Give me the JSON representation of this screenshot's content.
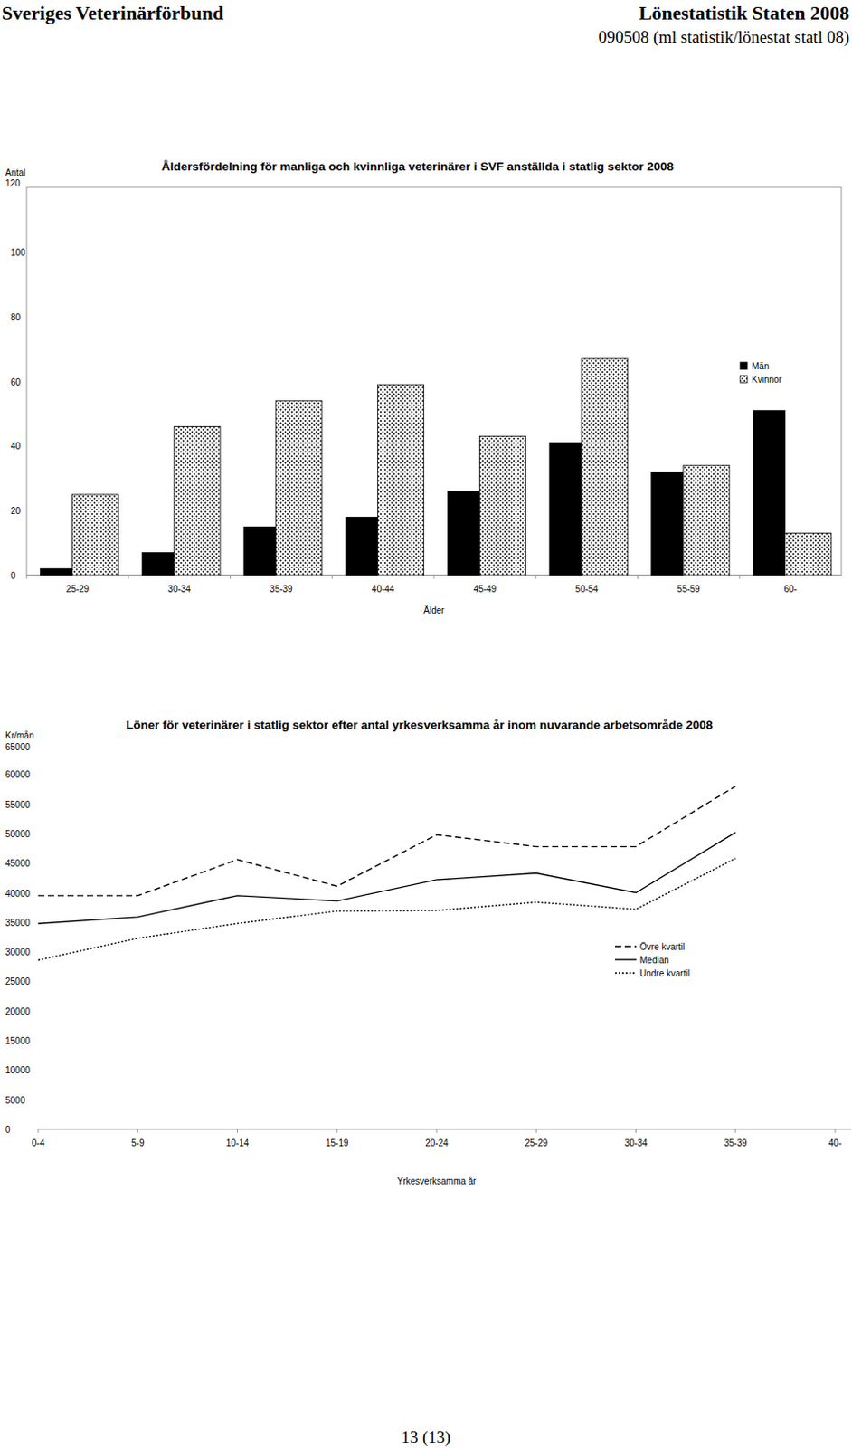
{
  "header": {
    "organization": "Sveriges Veterinärförbund",
    "title": "Lönestatistik Staten 2008",
    "reference": "090508 (ml statistik/lönestat statl 08)"
  },
  "footer": {
    "page": "13 (13)"
  },
  "chart_data": [
    {
      "type": "bar",
      "title": "Åldersfördelning för manliga och kvinnliga veterinärer i SVF anställda i statlig sektor 2008",
      "x_label": "Ålder",
      "y_label": "Antal",
      "categories": [
        "25-29",
        "30-34",
        "35-39",
        "40-44",
        "45-49",
        "50-54",
        "55-59",
        "60-"
      ],
      "series": [
        {
          "name": "Män",
          "color": "#000000",
          "values": [
            2,
            7,
            15,
            18,
            26,
            41,
            32,
            51
          ]
        },
        {
          "name": "Kvinnor",
          "color": "#ffffff",
          "values": [
            25,
            46,
            54,
            59,
            43,
            67,
            34,
            13
          ]
        }
      ],
      "ylim": [
        0,
        120
      ],
      "yticks": [
        0,
        20,
        40,
        60,
        80,
        100,
        120
      ],
      "legend": "right",
      "grid": false
    },
    {
      "type": "line",
      "title": "Löner för veterinärer i statlig sektor efter antal yrkesverksamma år inom  nuvarande arbetsområde 2008",
      "x_label": "Yrkesverksamma år",
      "y_label": "Kr/mån",
      "categories": [
        "0-4",
        "5-9",
        "10-14",
        "15-19",
        "20-24",
        "25-29",
        "30-34",
        "35-39",
        "40-"
      ],
      "series": [
        {
          "name": "Övre kvartil",
          "color": "#000000",
          "line_style": "dashed",
          "values": [
            39500,
            39500,
            45600,
            41100,
            49800,
            47800,
            47800,
            58000,
            null
          ]
        },
        {
          "name": "Median",
          "color": "#000000",
          "line_style": "solid",
          "values": [
            34800,
            35900,
            39500,
            38600,
            42200,
            43300,
            40000,
            50200,
            null
          ]
        },
        {
          "name": "Undre kvartil",
          "color": "#000000",
          "line_style": "dotted",
          "values": [
            28600,
            32300,
            34800,
            36900,
            37000,
            38400,
            37200,
            45800,
            null
          ]
        }
      ],
      "ylim": [
        0,
        65000
      ],
      "yticks": [
        0,
        5000,
        10000,
        15000,
        20000,
        25000,
        30000,
        35000,
        40000,
        45000,
        50000,
        55000,
        60000,
        65000
      ],
      "legend": "right",
      "grid": false
    }
  ]
}
